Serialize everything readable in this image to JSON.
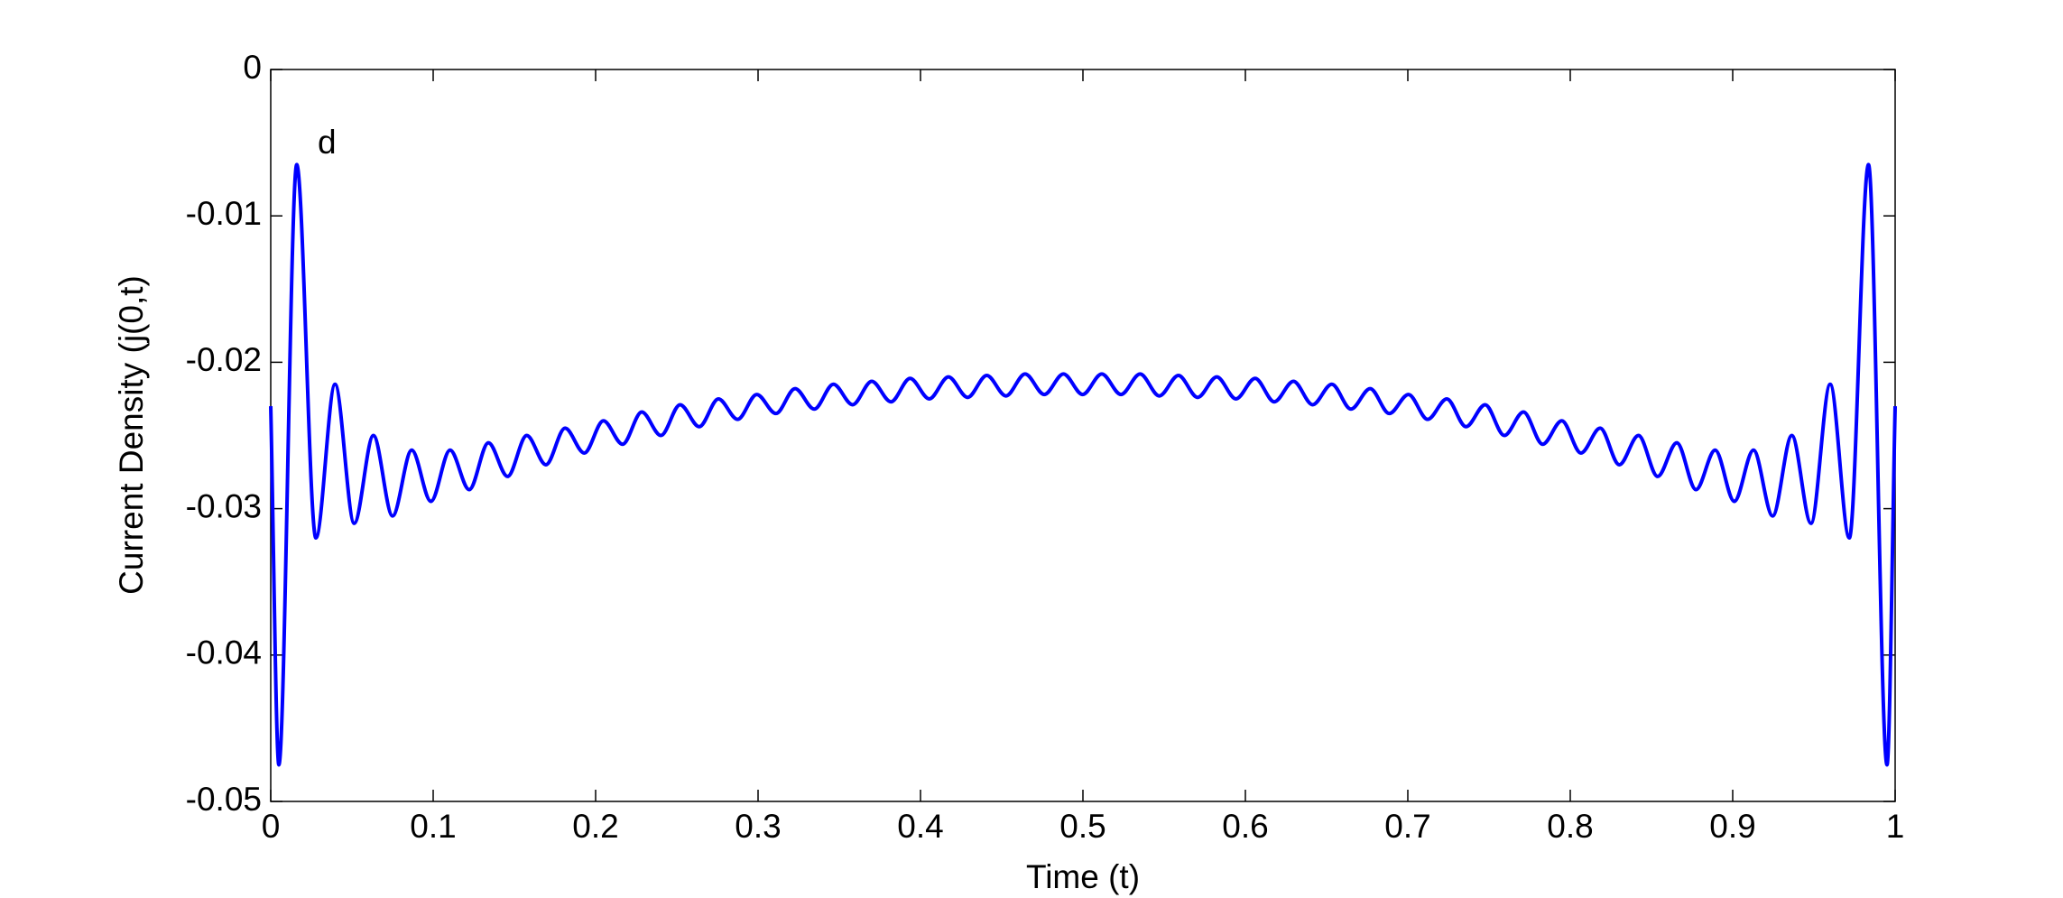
{
  "chart_data": {
    "type": "line",
    "xlabel": "Time (t)",
    "ylabel": "Current Density (j(0,t)",
    "annotation": "d",
    "color": "#0000ff",
    "xlim": [
      0,
      1
    ],
    "ylim": [
      -0.05,
      0
    ],
    "xticks": [
      0,
      0.1,
      0.2,
      0.3,
      0.4,
      0.5,
      0.6,
      0.7,
      0.8,
      0.9,
      1
    ],
    "yticks": [
      -0.05,
      -0.04,
      -0.03,
      -0.02,
      -0.01,
      0
    ],
    "grid": false,
    "x": [
      0,
      0.005,
      0.016,
      0.0278,
      0.0396,
      0.0514,
      0.0632,
      0.075,
      0.0868,
      0.0986,
      0.1104,
      0.1222,
      0.134,
      0.1458,
      0.1576,
      0.1694,
      0.1812,
      0.193,
      0.2048,
      0.2166,
      0.2284,
      0.2402,
      0.252,
      0.2638,
      0.2756,
      0.2874,
      0.2992,
      0.311,
      0.3228,
      0.3346,
      0.3464,
      0.3582,
      0.37,
      0.3818,
      0.3936,
      0.4054,
      0.4172,
      0.429,
      0.4408,
      0.4526,
      0.4644,
      0.4762,
      0.488,
      0.4998,
      0.5116,
      0.5234,
      0.5352,
      0.547,
      0.5588,
      0.5706,
      0.5824,
      0.5942,
      0.606,
      0.6178,
      0.6296,
      0.6414,
      0.6532,
      0.665,
      0.6768,
      0.6886,
      0.7004,
      0.7122,
      0.724,
      0.7358,
      0.7476,
      0.7594,
      0.7712,
      0.783,
      0.7948,
      0.8066,
      0.8184,
      0.8302,
      0.842,
      0.8538,
      0.8656,
      0.8774,
      0.8892,
      0.901,
      0.9128,
      0.9246,
      0.9364,
      0.9482,
      0.96,
      0.9718,
      0.9836,
      0.995,
      1
    ],
    "values": [
      -0.023,
      -0.0475,
      -0.0065,
      -0.032,
      -0.0215,
      -0.031,
      -0.025,
      -0.0305,
      -0.026,
      -0.0295,
      -0.026,
      -0.0287,
      -0.0255,
      -0.0278,
      -0.025,
      -0.027,
      -0.0245,
      -0.0262,
      -0.024,
      -0.0256,
      -0.0234,
      -0.025,
      -0.0229,
      -0.0244,
      -0.0225,
      -0.0239,
      -0.0222,
      -0.0235,
      -0.0218,
      -0.0232,
      -0.0215,
      -0.0229,
      -0.0213,
      -0.0227,
      -0.0211,
      -0.0225,
      -0.021,
      -0.0224,
      -0.0209,
      -0.0223,
      -0.0208,
      -0.0222,
      -0.0208,
      -0.0222,
      -0.0208,
      -0.0222,
      -0.0208,
      -0.0223,
      -0.0209,
      -0.0224,
      -0.021,
      -0.0225,
      -0.0211,
      -0.0227,
      -0.0213,
      -0.0229,
      -0.0215,
      -0.0232,
      -0.0218,
      -0.0235,
      -0.0222,
      -0.0239,
      -0.0225,
      -0.0244,
      -0.0229,
      -0.025,
      -0.0234,
      -0.0256,
      -0.024,
      -0.0262,
      -0.0245,
      -0.027,
      -0.025,
      -0.0278,
      -0.0255,
      -0.0287,
      -0.026,
      -0.0295,
      -0.026,
      -0.0305,
      -0.025,
      -0.031,
      -0.0215,
      -0.032,
      -0.0065,
      -0.0475,
      -0.023
    ]
  }
}
